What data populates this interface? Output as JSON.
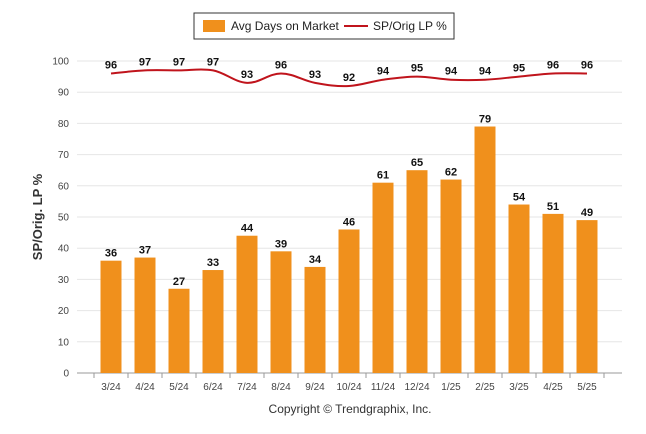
{
  "chart_data": {
    "type": "bar",
    "categories": [
      "3/24",
      "4/24",
      "5/24",
      "6/24",
      "7/24",
      "8/24",
      "9/24",
      "10/24",
      "11/24",
      "12/24",
      "1/25",
      "2/25",
      "3/25",
      "4/25",
      "5/25"
    ],
    "series": [
      {
        "name": "Avg Days on Market",
        "type": "bar",
        "color": "#f0901c",
        "values": [
          36,
          37,
          27,
          33,
          44,
          39,
          34,
          46,
          61,
          65,
          62,
          79,
          54,
          51,
          49
        ]
      },
      {
        "name": "SP/Orig LP %",
        "type": "line",
        "color": "#c0141c",
        "values": [
          96,
          97,
          97,
          97,
          93,
          96,
          93,
          92,
          94,
          95,
          94,
          94,
          95,
          96,
          96
        ]
      }
    ],
    "ylabel": "SP/Orig. LP %",
    "ylim": [
      0,
      100
    ],
    "yticks": [
      0,
      10,
      20,
      30,
      40,
      50,
      60,
      70,
      80,
      90,
      100
    ],
    "grid": true,
    "legend_position": "top-center",
    "credit": "Copyright © Trendgraphix, Inc."
  }
}
